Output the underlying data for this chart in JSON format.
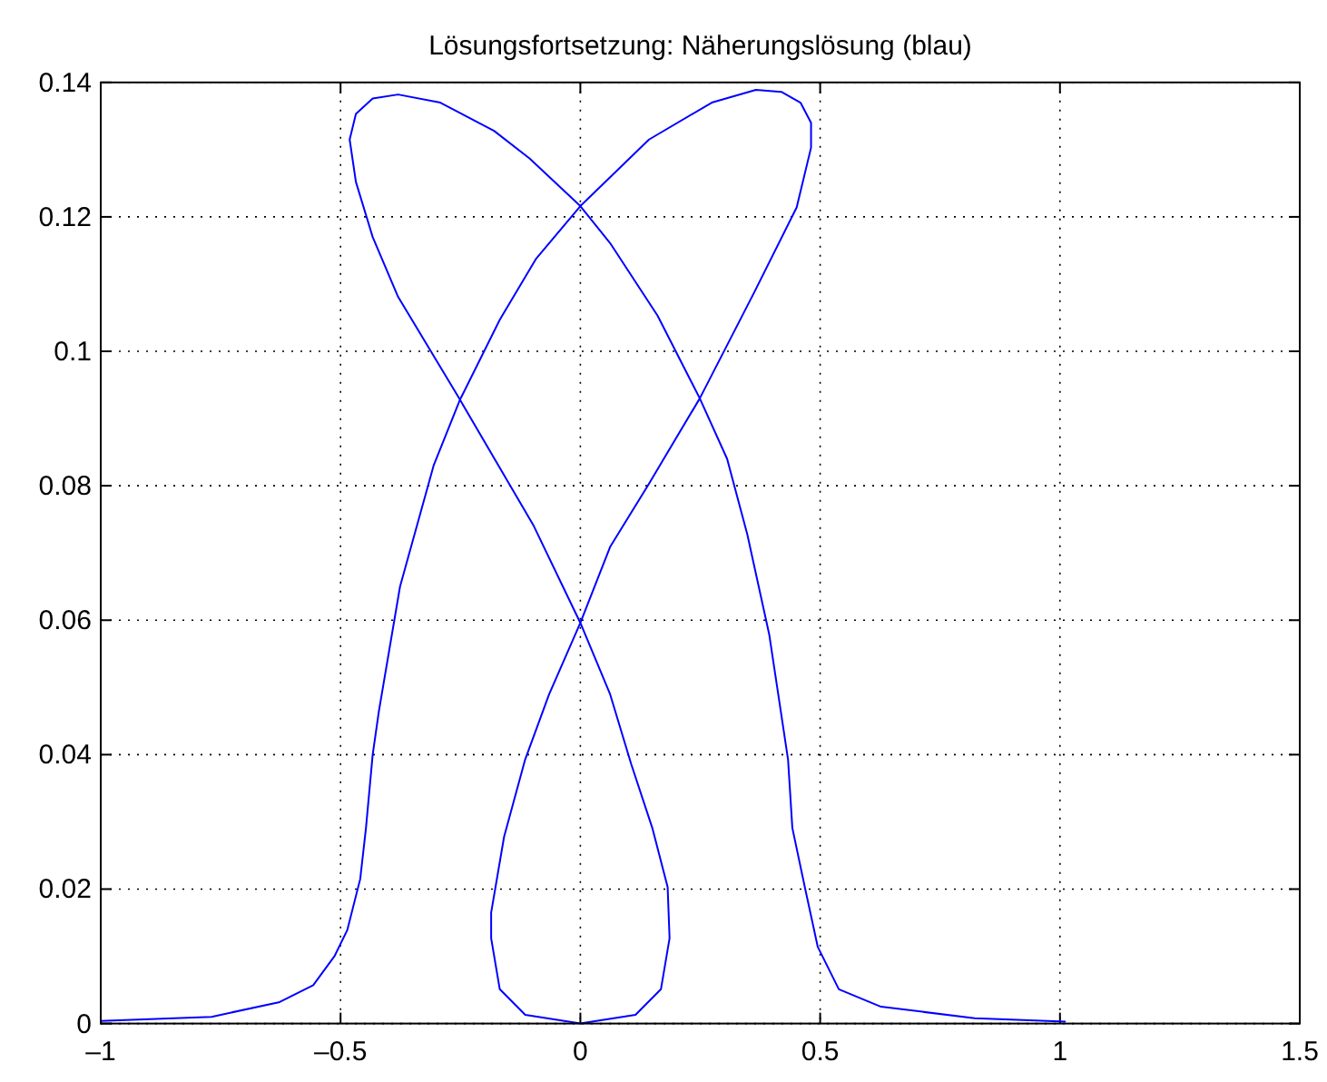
{
  "chart_data": {
    "type": "line",
    "title": "Lösungsfortsetzung: Näherungslösung (blau)",
    "xlim": [
      -1,
      1.5
    ],
    "ylim": [
      0,
      0.14
    ],
    "xticks": [
      {
        "value": -1,
        "label": "–1"
      },
      {
        "value": -0.5,
        "label": "–0.5"
      },
      0,
      0.5,
      1,
      1.5
    ],
    "yticks": [
      0,
      0.02,
      0.04,
      0.06,
      0.08,
      0.1,
      0.12,
      0.14
    ],
    "grid": true,
    "marker": "none",
    "line_style": "solid",
    "series": [
      {
        "color": "#0000ff",
        "x": [
          -1,
          -0.769,
          -0.627,
          -0.557,
          -0.512,
          -0.486,
          -0.459,
          -0.447,
          -0.433,
          -0.42,
          -0.376,
          -0.306,
          -0.251,
          -0.168,
          -0.092,
          0,
          0.143,
          0.274,
          0.366,
          0.419,
          0.459,
          0.481,
          0.481,
          0.451,
          0.362,
          0.249,
          0.143,
          0.062,
          0,
          -0.065,
          -0.115,
          -0.159,
          -0.186,
          -0.186,
          -0.168,
          -0.115,
          0,
          0.115,
          0.168,
          0.186,
          0.182,
          0.15,
          0.106,
          0.062,
          0,
          -0.097,
          -0.251,
          -0.38,
          -0.433,
          -0.468,
          -0.481,
          -0.468,
          -0.433,
          -0.38,
          -0.292,
          -0.18,
          -0.106,
          0,
          0.062,
          0.161,
          0.249,
          0.306,
          0.348,
          0.394,
          0.433,
          0.442,
          0.468,
          0.495,
          0.539,
          0.627,
          0.822,
          1.012
        ],
        "values": [
          0.0004,
          0.001,
          0.0032,
          0.0057,
          0.0101,
          0.0139,
          0.0215,
          0.0291,
          0.04,
          0.0465,
          0.065,
          0.083,
          0.0928,
          0.1047,
          0.1138,
          0.1216,
          0.1315,
          0.137,
          0.1389,
          0.1386,
          0.137,
          0.134,
          0.1303,
          0.1214,
          0.1087,
          0.093,
          0.0803,
          0.0709,
          0.0596,
          0.049,
          0.0393,
          0.0278,
          0.0165,
          0.0127,
          0.0051,
          0.0013,
          0,
          0.0013,
          0.0051,
          0.0127,
          0.0203,
          0.0291,
          0.0386,
          0.049,
          0.0596,
          0.074,
          0.0928,
          0.1081,
          0.117,
          0.1252,
          0.1315,
          0.1353,
          0.1376,
          0.1382,
          0.137,
          0.1328,
          0.1287,
          0.1216,
          0.1161,
          0.1053,
          0.093,
          0.084,
          0.0728,
          0.0578,
          0.0393,
          0.0291,
          0.0203,
          0.0114,
          0.0051,
          0.0025,
          0.0008,
          0.0003
        ]
      }
    ]
  }
}
